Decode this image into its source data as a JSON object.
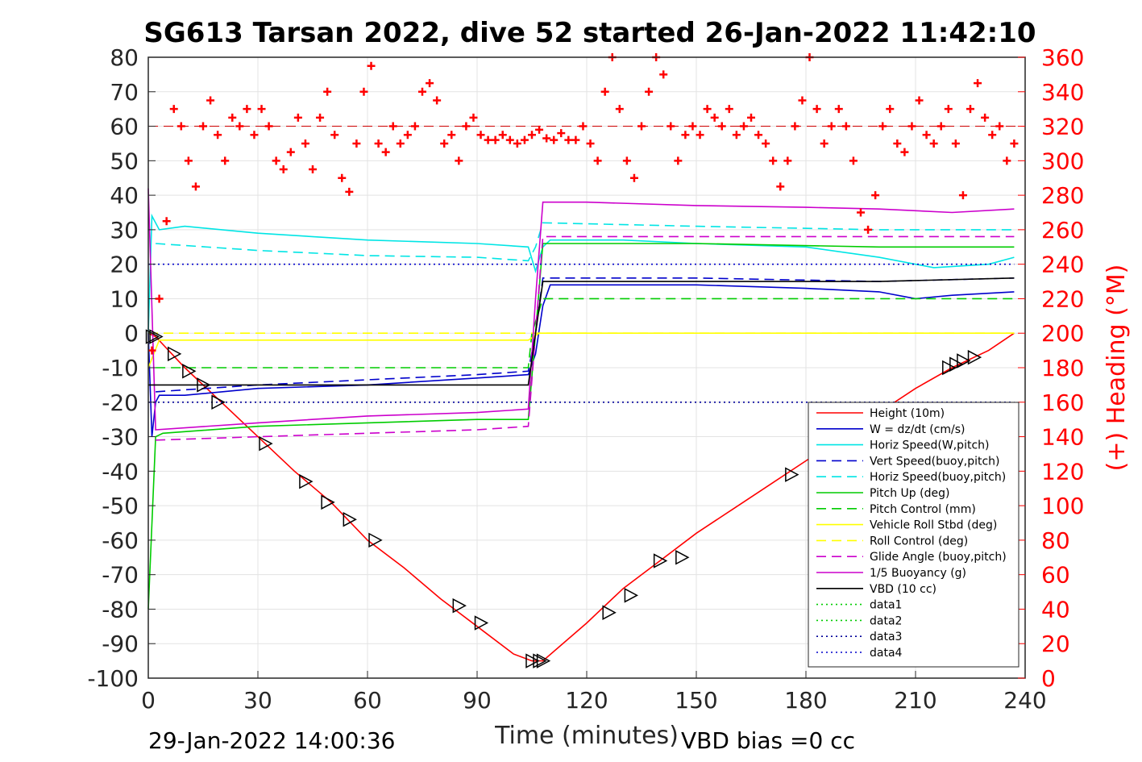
{
  "footer": {
    "timestamp": "29-Jan-2022 14:00:36",
    "vbd_bias": "VBD bias =0 cc"
  },
  "chart_data": {
    "type": "line",
    "title": "SG613 Tarsan 2022, dive 52 started 26-Jan-2022 11:42:10",
    "xlabel": "Time (minutes)",
    "ylabel": "",
    "y2label": "(+) Heading (°M)",
    "xlim": [
      0,
      240
    ],
    "ylim": [
      -100,
      80
    ],
    "y2lim": [
      0,
      360
    ],
    "xticks": [
      0,
      30,
      60,
      90,
      120,
      150,
      180,
      210,
      240
    ],
    "yticks": [
      -100,
      -90,
      -80,
      -70,
      -60,
      -50,
      -40,
      -30,
      -20,
      -10,
      0,
      10,
      20,
      30,
      40,
      50,
      60,
      70,
      80
    ],
    "y2ticks": [
      0,
      20,
      40,
      60,
      80,
      100,
      120,
      140,
      160,
      180,
      200,
      220,
      240,
      260,
      280,
      300,
      320,
      340,
      360
    ],
    "grid": true,
    "legend_position": "bottom-right",
    "series": [
      {
        "name": "Height (10m)",
        "color": "#ff0000",
        "style": "solid",
        "x": [
          0,
          2,
          10,
          20,
          30,
          40,
          50,
          60,
          70,
          80,
          90,
          100,
          105,
          108,
          120,
          130,
          140,
          150,
          160,
          170,
          180,
          190,
          200,
          210,
          220,
          230,
          237
        ],
        "y": [
          0,
          -1,
          -10,
          -20,
          -30,
          -40,
          -49,
          -60,
          -68,
          -77,
          -85,
          -93,
          -95,
          -95,
          -84,
          -74,
          -66,
          -58,
          -51,
          -44,
          -37,
          -30,
          -23,
          -16,
          -10,
          -5,
          0
        ]
      },
      {
        "name": "W = dz/dt (cm/s)",
        "color": "#0000cc",
        "style": "solid",
        "x": [
          0,
          1,
          2,
          3,
          10,
          30,
          60,
          90,
          104,
          106,
          108,
          110,
          120,
          150,
          180,
          200,
          210,
          220,
          237
        ],
        "y": [
          0,
          -30,
          -20,
          -18,
          -18,
          -16,
          -15,
          -13,
          -12,
          -6,
          8,
          14,
          14,
          14,
          13,
          12,
          10,
          11,
          12
        ]
      },
      {
        "name": "Horiz Speed(W,pitch)",
        "color": "#00e5e5",
        "style": "solid",
        "x": [
          0,
          1,
          3,
          10,
          30,
          60,
          90,
          104,
          106,
          108,
          110,
          130,
          150,
          180,
          200,
          215,
          230,
          237
        ],
        "y": [
          0,
          34,
          30,
          31,
          29,
          27,
          26,
          25,
          18,
          25,
          27,
          27,
          26,
          25,
          22,
          19,
          20,
          22
        ]
      },
      {
        "name": "Vert Speed(buoy,pitch)",
        "color": "#0000cc",
        "style": "dash",
        "x": [
          2,
          30,
          60,
          90,
          104,
          106,
          108,
          150,
          200,
          237
        ],
        "y": [
          -17,
          -15,
          -13.5,
          -12,
          -11,
          0,
          16,
          16,
          15,
          16
        ]
      },
      {
        "name": "Horiz Speed(buoy,pitch)",
        "color": "#00e5e5",
        "style": "dash",
        "x": [
          2,
          30,
          60,
          90,
          104,
          106,
          108,
          150,
          200,
          237
        ],
        "y": [
          26,
          24,
          22.5,
          22,
          21,
          25,
          32,
          31,
          30,
          30
        ]
      },
      {
        "name": "Pitch Up (deg)",
        "color": "#00cc00",
        "style": "solid",
        "x": [
          0,
          2,
          4,
          30,
          60,
          90,
          104,
          106,
          108,
          150,
          200,
          237
        ],
        "y": [
          -80,
          -30,
          -29,
          -27,
          -26,
          -25,
          -25,
          0,
          26,
          26,
          25,
          25
        ]
      },
      {
        "name": "Pitch Control (mm)",
        "color": "#00cc00",
        "style": "dash",
        "x": [
          2,
          104,
          105,
          108,
          237
        ],
        "y": [
          -10,
          -10,
          0,
          10,
          10
        ]
      },
      {
        "name": "Vehicle Roll Stbd (deg)",
        "color": "#ffff00",
        "style": "solid",
        "x": [
          0,
          3,
          10,
          30,
          60,
          90,
          104,
          107,
          110,
          130,
          150,
          180,
          210,
          237
        ],
        "y": [
          -10,
          -2,
          -2,
          -2,
          -2,
          -2,
          -2,
          0,
          0,
          0,
          0,
          0,
          0,
          0
        ]
      },
      {
        "name": "Roll Control (deg)",
        "color": "#ffff00",
        "style": "dash",
        "x": [
          0,
          237
        ],
        "y": [
          0,
          0
        ]
      },
      {
        "name": "Glide Angle (buoy,pitch)",
        "color": "#cc00cc",
        "style": "dash",
        "x": [
          2,
          30,
          60,
          90,
          104,
          106,
          108,
          150,
          200,
          237
        ],
        "y": [
          -31,
          -30,
          -29,
          -28,
          -27,
          0,
          28,
          28,
          28,
          28
        ]
      },
      {
        "name": "1/5 Buoyancy (g)",
        "color": "#cc00cc",
        "style": "solid",
        "x": [
          0,
          2,
          30,
          60,
          90,
          104,
          106,
          108,
          120,
          150,
          180,
          200,
          220,
          237
        ],
        "y": [
          42,
          -28,
          -26,
          -24,
          -23,
          -22,
          10,
          38,
          38,
          37,
          36.5,
          36,
          35,
          36
        ]
      },
      {
        "name": "VBD (10 cc)",
        "color": "#000000",
        "style": "solid",
        "x": [
          0,
          2,
          104,
          106,
          108,
          200,
          237
        ],
        "y": [
          -15,
          -15,
          -15,
          0,
          15,
          15,
          16
        ]
      },
      {
        "name": "data1",
        "color": "#00cc00",
        "style": "dot",
        "x": [],
        "y": []
      },
      {
        "name": "data2",
        "color": "#00cc00",
        "style": "dot",
        "x": [],
        "y": []
      },
      {
        "name": "data3",
        "color": "#000099",
        "style": "dot",
        "x": [
          0,
          237
        ],
        "y": [
          -20,
          -20
        ]
      },
      {
        "name": "data4",
        "color": "#0000cc",
        "style": "dot",
        "x": [
          0,
          237
        ],
        "y": [
          20,
          20
        ]
      }
    ],
    "heading": {
      "color": "#ff0000",
      "axis": "right",
      "reference": 320,
      "x": [
        1,
        3,
        5,
        7,
        9,
        11,
        13,
        15,
        17,
        19,
        21,
        23,
        25,
        27,
        29,
        31,
        33,
        35,
        37,
        39,
        41,
        43,
        45,
        47,
        49,
        51,
        53,
        55,
        57,
        59,
        61,
        63,
        65,
        67,
        69,
        71,
        73,
        75,
        77,
        79,
        81,
        83,
        85,
        87,
        89,
        91,
        93,
        95,
        97,
        99,
        101,
        103,
        105,
        107,
        109,
        111,
        113,
        115,
        117,
        119,
        121,
        123,
        125,
        127,
        129,
        131,
        133,
        135,
        137,
        139,
        141,
        143,
        145,
        147,
        149,
        151,
        153,
        155,
        157,
        159,
        161,
        163,
        165,
        167,
        169,
        171,
        173,
        175,
        177,
        179,
        181,
        183,
        185,
        187,
        189,
        191,
        193,
        195,
        197,
        199,
        201,
        203,
        205,
        207,
        209,
        211,
        213,
        215,
        217,
        219,
        221,
        223,
        225,
        227,
        229,
        231,
        233,
        235,
        237
      ],
      "y": [
        190,
        220,
        265,
        330,
        320,
        300,
        285,
        320,
        335,
        315,
        300,
        325,
        320,
        330,
        315,
        330,
        320,
        300,
        295,
        305,
        325,
        310,
        295,
        325,
        340,
        315,
        290,
        282,
        310,
        340,
        355,
        310,
        305,
        320,
        310,
        315,
        320,
        340,
        345,
        335,
        310,
        315,
        300,
        320,
        325,
        315,
        312,
        312,
        315,
        312,
        310,
        312,
        315,
        318,
        313,
        312,
        316,
        312,
        312,
        320,
        310,
        300,
        340,
        360,
        330,
        300,
        290,
        320,
        340,
        360,
        350,
        320,
        300,
        315,
        320,
        315,
        330,
        325,
        320,
        330,
        315,
        320,
        325,
        315,
        310,
        300,
        285,
        300,
        320,
        335,
        360,
        330,
        310,
        320,
        330,
        320,
        300,
        270,
        260,
        280,
        320,
        330,
        310,
        305,
        320,
        335,
        315,
        310,
        320,
        330,
        310,
        280,
        330,
        345,
        325,
        315,
        320,
        300,
        310
      ]
    },
    "markers": {
      "symbol": "triangle",
      "color": "#000000",
      "x": [
        1,
        2,
        7,
        11,
        15,
        19,
        32,
        43,
        49,
        55,
        62,
        85,
        91,
        105,
        107,
        108,
        126,
        132,
        140,
        146,
        176,
        219,
        221,
        223,
        226
      ],
      "y": [
        -1,
        -1,
        -6,
        -11,
        -15,
        -20,
        -32,
        -43,
        -49,
        -54,
        -60,
        -79,
        -84,
        -95,
        -95,
        -95,
        -81,
        -76,
        -66,
        -65,
        -41,
        -10,
        -9,
        -8,
        -7
      ]
    }
  }
}
